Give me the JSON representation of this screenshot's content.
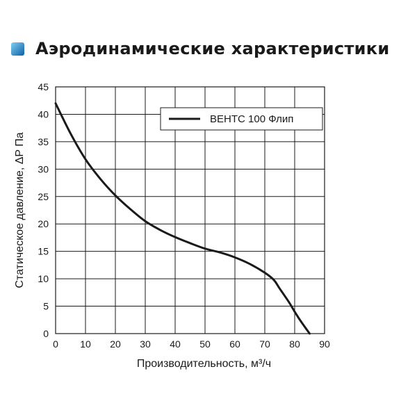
{
  "header": {
    "title": "Аэродинамические характеристики",
    "icon": "gradient-square-icon"
  },
  "colors": {
    "icon_gradient_start": "#7fd0ee",
    "icon_gradient_end": "#0c5fa8",
    "curve": "#1a1a1a",
    "grid": "#1a1a1a",
    "text": "#1a1a1a"
  },
  "chart_data": {
    "type": "line",
    "title": "Аэродинамические характеристики",
    "xlabel": "Производительность, м³/ч",
    "ylabel": "Статическое давление, ΔP Па",
    "xlim": [
      0,
      90
    ],
    "ylim": [
      0,
      45
    ],
    "x_ticks": [
      0,
      10,
      20,
      30,
      40,
      50,
      60,
      70,
      80,
      90
    ],
    "y_ticks": [
      0,
      5,
      10,
      15,
      20,
      25,
      30,
      35,
      40,
      45
    ],
    "grid": true,
    "legend_position": "top-right",
    "series": [
      {
        "name": "ВЕНТС 100 Флип",
        "x": [
          0,
          5,
          10,
          15,
          20,
          25,
          30,
          35,
          40,
          45,
          50,
          55,
          60,
          65,
          70,
          73,
          75,
          78,
          80,
          82,
          85
        ],
        "y": [
          42,
          36.5,
          31.8,
          28.2,
          25.2,
          22.7,
          20.5,
          18.9,
          17.6,
          16.5,
          15.5,
          14.8,
          13.9,
          12.7,
          11.1,
          9.8,
          8.2,
          5.8,
          4.0,
          2.3,
          0
        ]
      }
    ]
  }
}
